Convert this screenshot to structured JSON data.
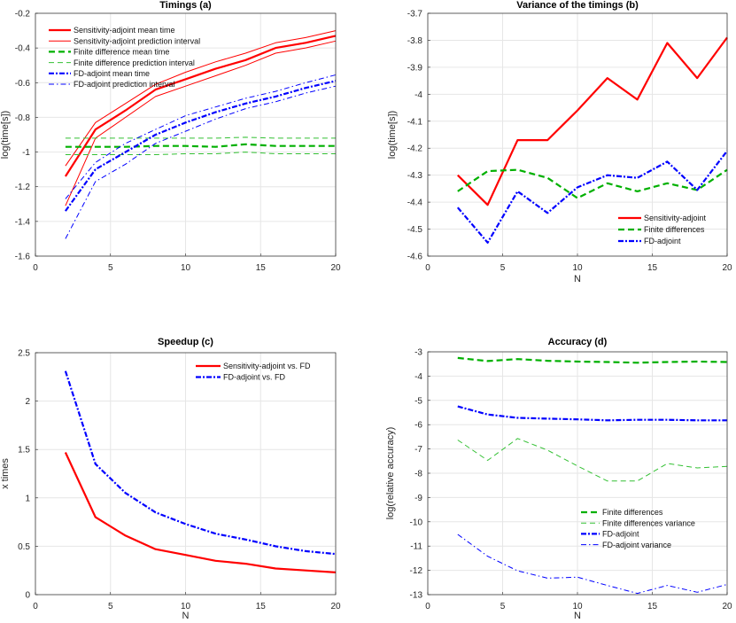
{
  "chart_data": [
    {
      "type": "line",
      "title": "Timings (a)",
      "xlabel": "",
      "ylabel": "log(time[s])",
      "xlim": [
        0,
        20
      ],
      "ylim": [
        -1.6,
        -0.2
      ],
      "xticks": [
        0,
        5,
        10,
        15,
        20
      ],
      "yticks": [
        -1.6,
        -1.4,
        -1.2,
        -1,
        -0.8,
        -0.6,
        -0.4,
        -0.2
      ],
      "grid": true,
      "legend": "top-left",
      "x": [
        2,
        4,
        6,
        8,
        10,
        12,
        14,
        16,
        18,
        20
      ],
      "series": [
        {
          "name": "Sensitivity-adjoint mean time",
          "color": "#ff0000",
          "style": "solid-thick",
          "values": [
            -1.14,
            -0.87,
            -0.76,
            -0.64,
            -0.58,
            -0.52,
            -0.47,
            -0.4,
            -0.37,
            -0.33
          ]
        },
        {
          "name": "Sensitivity-adjoint prediction interval",
          "color": "#ff0000",
          "style": "solid-thin",
          "values": [
            -1.08,
            -0.83,
            -0.72,
            -0.61,
            -0.54,
            -0.48,
            -0.43,
            -0.37,
            -0.34,
            -0.3
          ]
        },
        {
          "name": "",
          "color": "#ff0000",
          "style": "solid-thin",
          "values": [
            -1.31,
            -0.92,
            -0.8,
            -0.68,
            -0.62,
            -0.56,
            -0.5,
            -0.43,
            -0.4,
            -0.36
          ]
        },
        {
          "name": "Finite difference mean time",
          "color": "#00b000",
          "style": "dashed-thick",
          "values": [
            -0.97,
            -0.97,
            -0.97,
            -0.965,
            -0.965,
            -0.97,
            -0.955,
            -0.965,
            -0.965,
            -0.965
          ]
        },
        {
          "name": "Finite difference prediction interval",
          "color": "#33c033",
          "style": "dashed-thin",
          "values": [
            -0.92,
            -0.92,
            -0.92,
            -0.92,
            -0.92,
            -0.92,
            -0.915,
            -0.92,
            -0.92,
            -0.92
          ]
        },
        {
          "name": "",
          "color": "#33c033",
          "style": "dashed-thin",
          "values": [
            -1.015,
            -1.015,
            -1.015,
            -1.015,
            -1.01,
            -1.01,
            -1.0,
            -1.01,
            -1.01,
            -1.01
          ]
        },
        {
          "name": "FD-adjoint mean time",
          "color": "#0000ff",
          "style": "dashdot-thick",
          "values": [
            -1.34,
            -1.1,
            -1.0,
            -0.9,
            -0.83,
            -0.77,
            -0.72,
            -0.68,
            -0.63,
            -0.59
          ]
        },
        {
          "name": "FD-adjoint prediction interval",
          "color": "#0000ff",
          "style": "dashdot-thin",
          "values": [
            -1.27,
            -1.06,
            -0.95,
            -0.87,
            -0.79,
            -0.74,
            -0.69,
            -0.65,
            -0.6,
            -0.555
          ]
        },
        {
          "name": "",
          "color": "#0000ff",
          "style": "dashdot-thin",
          "values": [
            -1.5,
            -1.17,
            -1.07,
            -0.95,
            -0.88,
            -0.81,
            -0.75,
            -0.71,
            -0.66,
            -0.62
          ]
        }
      ]
    },
    {
      "type": "line",
      "title": "Variance of the timings (b)",
      "xlabel": "N",
      "ylabel": "log(time[s])",
      "xlim": [
        0,
        20
      ],
      "ylim": [
        -4.6,
        -3.7
      ],
      "xticks": [
        0,
        5,
        10,
        15,
        20
      ],
      "yticks": [
        -4.6,
        -4.5,
        -4.4,
        -4.3,
        -4.2,
        -4.1,
        -4,
        -3.9,
        -3.8,
        -3.7
      ],
      "grid": true,
      "legend": "bottom-right",
      "x": [
        2,
        4,
        6,
        8,
        10,
        12,
        14,
        16,
        18,
        20
      ],
      "series": [
        {
          "name": "Sensitivity-adjoint",
          "color": "#ff0000",
          "style": "solid-thick",
          "values": [
            -4.3,
            -4.41,
            -4.17,
            -4.17,
            -4.06,
            -3.94,
            -4.02,
            -3.81,
            -3.94,
            -3.79
          ]
        },
        {
          "name": "Finite differences",
          "color": "#00b000",
          "style": "dashed-thick",
          "values": [
            -4.36,
            -4.285,
            -4.28,
            -4.31,
            -4.385,
            -4.33,
            -4.36,
            -4.33,
            -4.355,
            -4.28
          ]
        },
        {
          "name": "FD-adjoint",
          "color": "#0000ff",
          "style": "dashdot-thick",
          "values": [
            -4.42,
            -4.55,
            -4.36,
            -4.44,
            -4.345,
            -4.3,
            -4.31,
            -4.25,
            -4.355,
            -4.21
          ]
        }
      ]
    },
    {
      "type": "line",
      "title": "Speedup (c)",
      "xlabel": "N",
      "ylabel": "x times",
      "xlim": [
        0,
        20
      ],
      "ylim": [
        0,
        2.5
      ],
      "xticks": [
        0,
        5,
        10,
        15,
        20
      ],
      "yticks": [
        0,
        0.5,
        1,
        1.5,
        2,
        2.5
      ],
      "grid": true,
      "legend": "top-right",
      "x": [
        2,
        4,
        6,
        8,
        10,
        12,
        14,
        16,
        18,
        20
      ],
      "series": [
        {
          "name": "Sensitivity-adjoint vs. FD",
          "color": "#ff0000",
          "style": "solid-thick",
          "values": [
            1.47,
            0.8,
            0.61,
            0.47,
            0.41,
            0.35,
            0.32,
            0.27,
            0.25,
            0.23
          ]
        },
        {
          "name": "FD-adjoint vs. FD",
          "color": "#0000ff",
          "style": "dashdot-thick",
          "values": [
            2.31,
            1.35,
            1.05,
            0.85,
            0.73,
            0.63,
            0.57,
            0.5,
            0.45,
            0.42
          ]
        }
      ]
    },
    {
      "type": "line",
      "title": "Accuracy (d)",
      "xlabel": "N",
      "ylabel": "log(relative accuracy)",
      "xlim": [
        0,
        20
      ],
      "ylim": [
        -13,
        -3
      ],
      "xticks": [
        0,
        5,
        10,
        15,
        20
      ],
      "yticks": [
        -13,
        -12,
        -11,
        -10,
        -9,
        -8,
        -7,
        -6,
        -5,
        -4,
        -3
      ],
      "grid": true,
      "legend": "bottom-right",
      "x": [
        2,
        4,
        6,
        8,
        10,
        12,
        14,
        16,
        18,
        20
      ],
      "series": [
        {
          "name": "Finite differences",
          "color": "#00b000",
          "style": "dashed-thick",
          "values": [
            -3.25,
            -3.38,
            -3.3,
            -3.37,
            -3.4,
            -3.42,
            -3.45,
            -3.42,
            -3.4,
            -3.42
          ]
        },
        {
          "name": "Finite differences variance",
          "color": "#33c033",
          "style": "dashed-thin",
          "values": [
            -6.63,
            -7.47,
            -6.57,
            -7.05,
            -7.7,
            -8.32,
            -8.32,
            -7.6,
            -7.78,
            -7.72
          ]
        },
        {
          "name": "FD-adjoint",
          "color": "#0000ff",
          "style": "dashdot-thick",
          "values": [
            -5.25,
            -5.58,
            -5.72,
            -5.75,
            -5.78,
            -5.82,
            -5.8,
            -5.8,
            -5.82,
            -5.82
          ]
        },
        {
          "name": "FD-adjoint variance",
          "color": "#0000ff",
          "style": "dashdot-thin",
          "values": [
            -10.52,
            -11.42,
            -12.02,
            -12.32,
            -12.28,
            -12.62,
            -12.95,
            -12.62,
            -12.9,
            -12.58
          ]
        }
      ]
    }
  ]
}
